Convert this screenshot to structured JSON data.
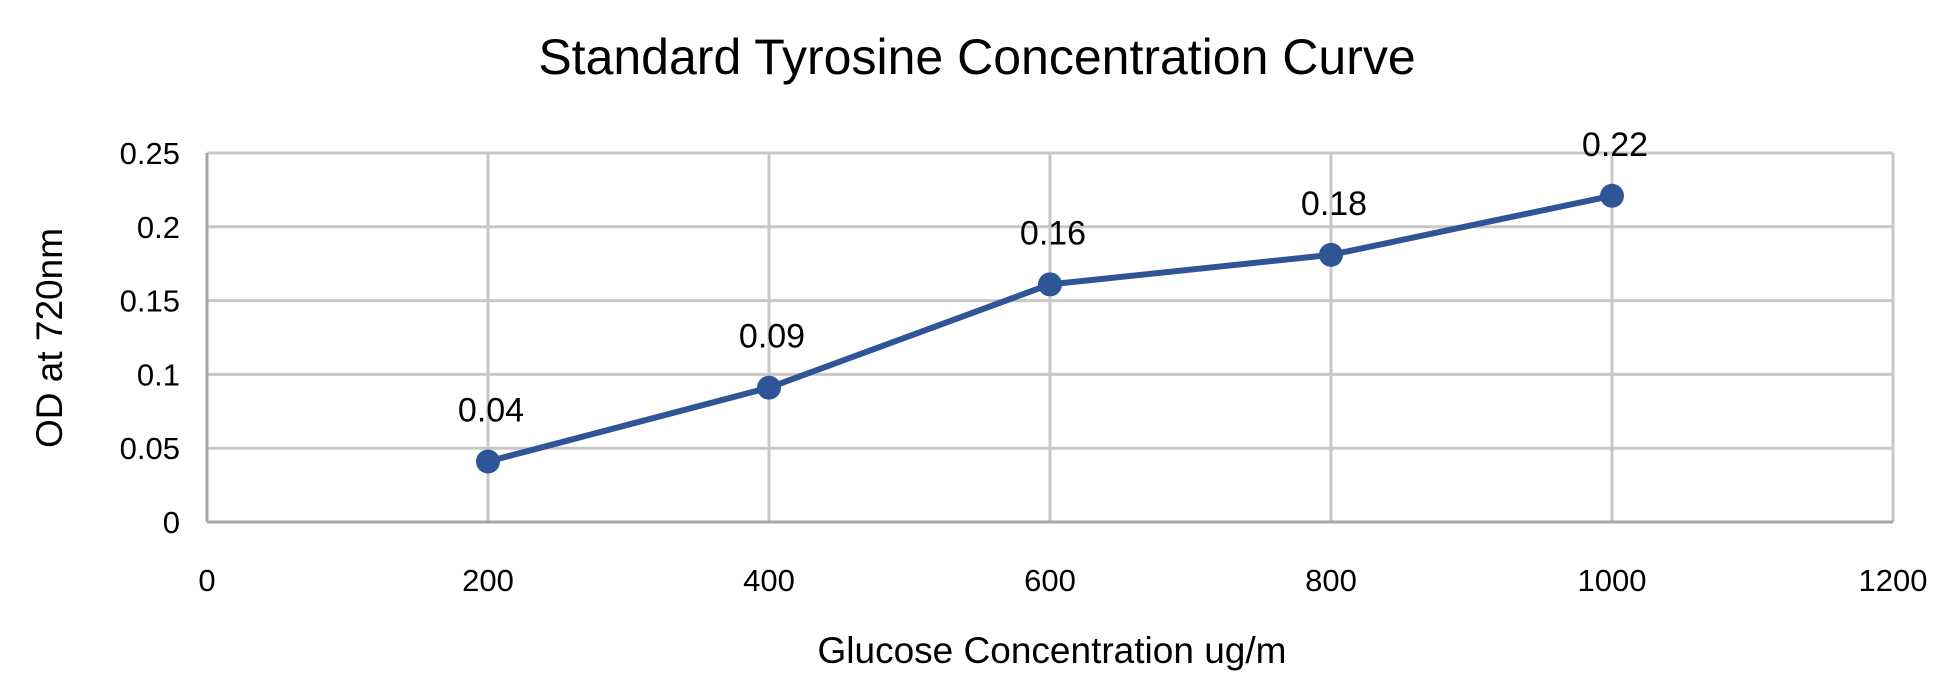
{
  "chart_data": {
    "type": "line",
    "title": "Standard Tyrosine Concentration Curve",
    "xlabel": "Glucose Concentration ug/m",
    "ylabel": "OD at 720nm",
    "xlim": [
      0,
      1200
    ],
    "ylim": [
      0,
      0.25
    ],
    "x_ticks": [
      "0",
      "200",
      "400",
      "600",
      "800",
      "1000",
      "1200"
    ],
    "y_ticks": [
      "0",
      "0.05",
      "0.1",
      "0.15",
      "0.2",
      "0.25"
    ],
    "grid": true,
    "legend": "none",
    "series": [
      {
        "color": "#2F5597",
        "points": [
          {
            "x": 200,
            "y": 0.041,
            "label": "0.04"
          },
          {
            "x": 400,
            "y": 0.091,
            "label": "0.09"
          },
          {
            "x": 600,
            "y": 0.161,
            "label": "0.16"
          },
          {
            "x": 800,
            "y": 0.181,
            "label": "0.18"
          },
          {
            "x": 1000,
            "y": 0.221,
            "label": "0.22"
          }
        ]
      }
    ],
    "colors": {
      "grid": "#C8C8C8",
      "axis": "#A6A6A6"
    }
  }
}
